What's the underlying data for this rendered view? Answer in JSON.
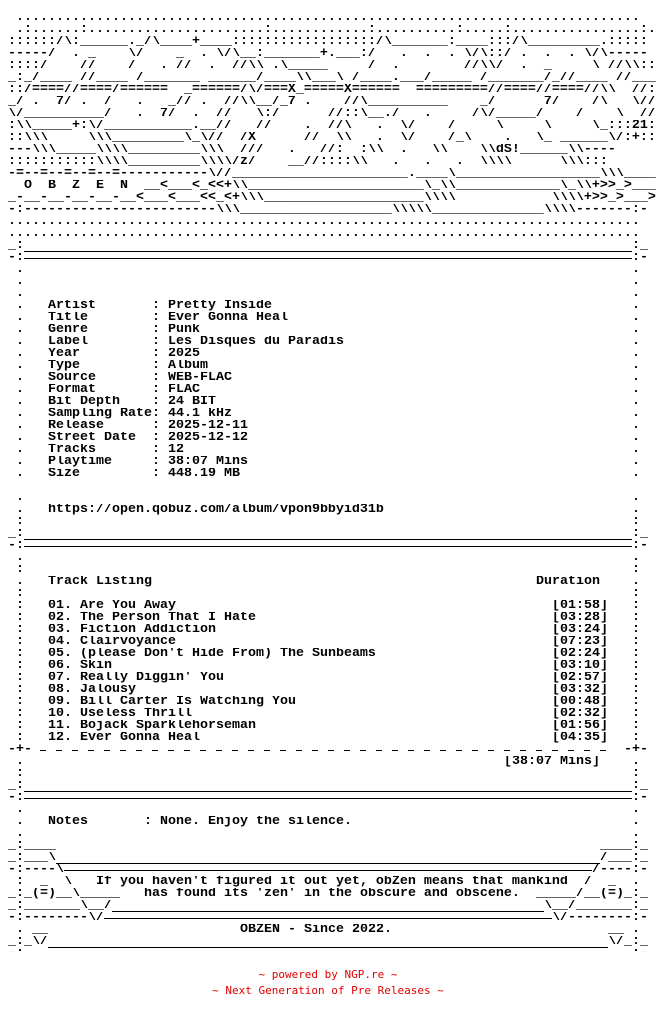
{
  "logo": {
    "art_lines": [
      " ..............................................................................",
      " .:......:......................:............:..........:.....:................:.",
      "::::::/\\:______._/\\____+____::::::::::::::::::/\\_______:____:::/\\_________.:::::",
      "-----/  . _    \\/    _  . \\/\\__:_______+.___:/   .  .  . \\/\\::/ .  .  . \\/\\-----",
      "::::/    //    /   . //  .  //\\\\ .\\_____     /  .        //\\\\/  .  _     \\ //\\\\::::",
      "_:_/____ //____ /_______ ______/____\\\\___\\ /____.___/_____ /_______/_//____ //___\\\\_:_",
      "::/====//====/======  _======/\\/===X_=====X======  =========//====//====//\\\\  //:::",
      "_/ .  7/ .  /   .   _// .  //\\\\__/_7 .    //\\__________    _/      7/    /\\   \\///::::",
      "\\/__________/   .  7/  .  //   \\:/      //::\\__./   .     /\\/_____/    /    \\  //(C)::",
      ":\\\\_____+:\\/___________.__//   //    .  //\\   .  \\/    /     \\     \\     \\_:::21:",
      "::\\\\\\     \\\\\\_________\\_\\//  /X      //  \\\\   .  \\/    /_\\    .   \\_ ______\\/:+::::",
      "---\\\\\\_____\\\\\\\\_________\\\\\\  ///   .   //:  :\\\\  .   \\\\    \\\\dS!______\\\\----",
      ":::::::::::\\\\\\\\_________\\\\\\\\/z/    __//::::\\\\   .   .   .  \\\\\\\\      \\\\\\:::",
      "-=--=--=--=--=-----------\\//______________________.____\\__________________\\\\\\____\\\\\\--",
      "  O  B  Z  E  N  __<___<_<<+\\\\______________________\\_\\\\_____________\\_\\\\+>>_>___>::",
      "_-__-__-__-__-__<___<___<<_<+\\\\\\____________________\\\\\\\\            \\\\\\\\+>>_>___>:",
      "-:------------------------\\\\\\___________________\\\\\\\\\\______________\\\\\\\\-------:-"
    ]
  },
  "frame": {
    "dot_row": "...............................................................................",
    "dot": ".",
    "colon": ":",
    "rule_u_left": "_:",
    "rule_u_right": ":_",
    "rule_d_left": "-:",
    "rule_d_right": ":-",
    "sep_left": "-+-",
    "sep_right": "-+-",
    "field_colon": ":",
    "q69_left": "_:____",
    "q69_right": "____:_",
    "q70_left": "_:___\\",
    "q70_right": "/___:_",
    "q71_left": "-:----\\",
    "q71_right": "/----:-",
    "q72_left": " :  _  \\",
    "q72_right": "/  _  .",
    "q73_left": "_:_(=)__\\_____",
    "q73_right": "_____/__(=)_:_",
    "q74_left": "_:_______\\__/",
    "q74_right": "\\__/_______:_",
    "q75_left": "-:--------\\/",
    "q75_right": "\\/--------:-",
    "q76_left": " . __",
    "q76_right": "__ .",
    "q77_left": "_:_\\/",
    "q77_right": "\\/_:_"
  },
  "release": {
    "fields": [
      {
        "label": "Artist",
        "value": "Pretty Inside"
      },
      {
        "label": "Title",
        "value": "Ever Gonna Heal"
      },
      {
        "label": "Genre",
        "value": "Punk"
      },
      {
        "label": "Label",
        "value": "Les Disques du Paradis"
      },
      {
        "label": "Year",
        "value": "2025"
      },
      {
        "label": "Type",
        "value": "Album"
      },
      {
        "label": "Source",
        "value": "WEB-FLAC"
      },
      {
        "label": "Format",
        "value": "FLAC"
      },
      {
        "label": "Bit Depth",
        "value": "24 BIT"
      },
      {
        "label": "Sampling Rate",
        "value": "44.1 kHz"
      },
      {
        "label": "Release",
        "value": "2025-12-11"
      },
      {
        "label": "Street Date",
        "value": "2025-12-12"
      },
      {
        "label": "Tracks",
        "value": "12"
      },
      {
        "label": "Playtime",
        "value": "38:07 Mins"
      },
      {
        "label": "Size",
        "value": "448.19 MB"
      }
    ],
    "url": "https://open.qobuz.com/album/vpon9bbyid31b"
  },
  "tracklist": {
    "header": "Track Listing",
    "duration_header": "Duration",
    "tracks": [
      {
        "num": "01.",
        "title": "Are You Away",
        "duration": "[01:58]"
      },
      {
        "num": "02.",
        "title": "The Person That I Hate",
        "duration": "[03:28]"
      },
      {
        "num": "03.",
        "title": "Fiction Addiction",
        "duration": "[03:24]"
      },
      {
        "num": "04.",
        "title": "Clairvoyance",
        "duration": "[07:23]"
      },
      {
        "num": "05.",
        "title": "(please Don't Hide From) The Sunbeams",
        "duration": "[02:24]"
      },
      {
        "num": "06.",
        "title": "Skin",
        "duration": "[03:10]"
      },
      {
        "num": "07.",
        "title": "Really Diggin' You",
        "duration": "[02:57]"
      },
      {
        "num": "08.",
        "title": "Jalousy",
        "duration": "[03:32]"
      },
      {
        "num": "09.",
        "title": "Bill Carter Is Watching You",
        "duration": "[00:48]"
      },
      {
        "num": "10.",
        "title": "Useless Thrill",
        "duration": "[02:32]"
      },
      {
        "num": "11.",
        "title": "Bojack Sparklehorseman",
        "duration": "[01:56]"
      },
      {
        "num": "12.",
        "title": "Ever Gonna Heal",
        "duration": "[04:35]"
      }
    ],
    "total": "[38:07 Mins]"
  },
  "notes": {
    "label": "Notes",
    "value": "None. Enjoy the silence."
  },
  "quote": {
    "line1": "If you haven't figured it out yet, obZen means that mankind",
    "line2": "has found its 'zen' in the obscure and obscene."
  },
  "signoff": "OBZEN - Since 2022.",
  "footer": {
    "line1": "~ powered by NGP.re ~",
    "line2": "~ Next Generation of Pre Releases ~",
    "color": "#e00000"
  }
}
